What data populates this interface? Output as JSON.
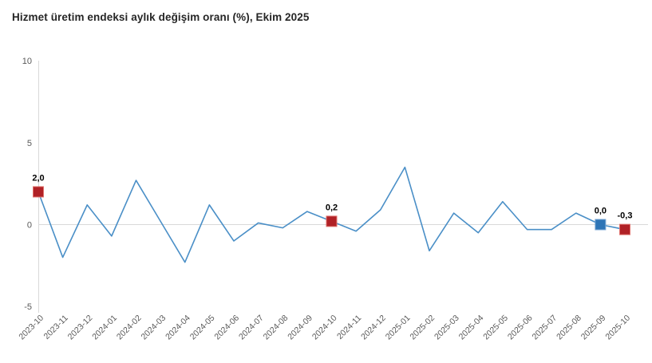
{
  "title": "Hizmet üretim endeksi aylık değişim oranı (%), Ekim 2025",
  "chart_data": {
    "type": "line",
    "title": "Hizmet üretim endeksi aylık değişim oranı (%), Ekim 2025",
    "xlabel": "",
    "ylabel": "",
    "ylim": [
      -5,
      10
    ],
    "grid": "zero-line-only",
    "legend_position": "none",
    "categories": [
      "2023-10",
      "2023-11",
      "2023-12",
      "2024-01",
      "2024-02",
      "2024-03",
      "2024-04",
      "2024-05",
      "2024-06",
      "2024-07",
      "2024-08",
      "2024-09",
      "2024-10",
      "2024-11",
      "2024-12",
      "2025-01",
      "2025-02",
      "2025-03",
      "2025-04",
      "2025-05",
      "2025-06",
      "2025-07",
      "2025-08",
      "2025-09",
      "2025-10"
    ],
    "values": [
      2.0,
      -2.0,
      1.2,
      -0.7,
      2.7,
      0.2,
      -2.3,
      1.2,
      -1.0,
      0.1,
      -0.2,
      0.8,
      0.2,
      -0.4,
      0.9,
      3.5,
      -1.6,
      0.7,
      -0.5,
      1.4,
      -0.3,
      -0.3,
      0.7,
      0.0,
      -0.3
    ],
    "yticks": [
      {
        "value": 10,
        "label": "10"
      },
      {
        "value": 5,
        "label": "5"
      },
      {
        "value": 0,
        "label": "0"
      },
      {
        "value": -5,
        "label": "-5"
      }
    ],
    "point_labels": [
      {
        "index": 0,
        "category": "2023-10",
        "text": "2,0",
        "marker": "red"
      },
      {
        "index": 12,
        "category": "2024-10",
        "text": "0,2",
        "marker": "red"
      },
      {
        "index": 23,
        "category": "2025-09",
        "text": "0,0",
        "marker": "blue"
      },
      {
        "index": 24,
        "category": "2025-10",
        "text": "-0,3",
        "marker": "red"
      }
    ],
    "colors": {
      "line": "#4a8fc7",
      "marker_red": "#b02126",
      "marker_red_border": "#e0716c",
      "marker_blue": "#2e75b6",
      "marker_blue_border": "#7aa7d4",
      "axis_line": "#d9d9d9",
      "tick_text": "#595959",
      "point_label_text": "#000000",
      "title_text": "#262626"
    }
  }
}
